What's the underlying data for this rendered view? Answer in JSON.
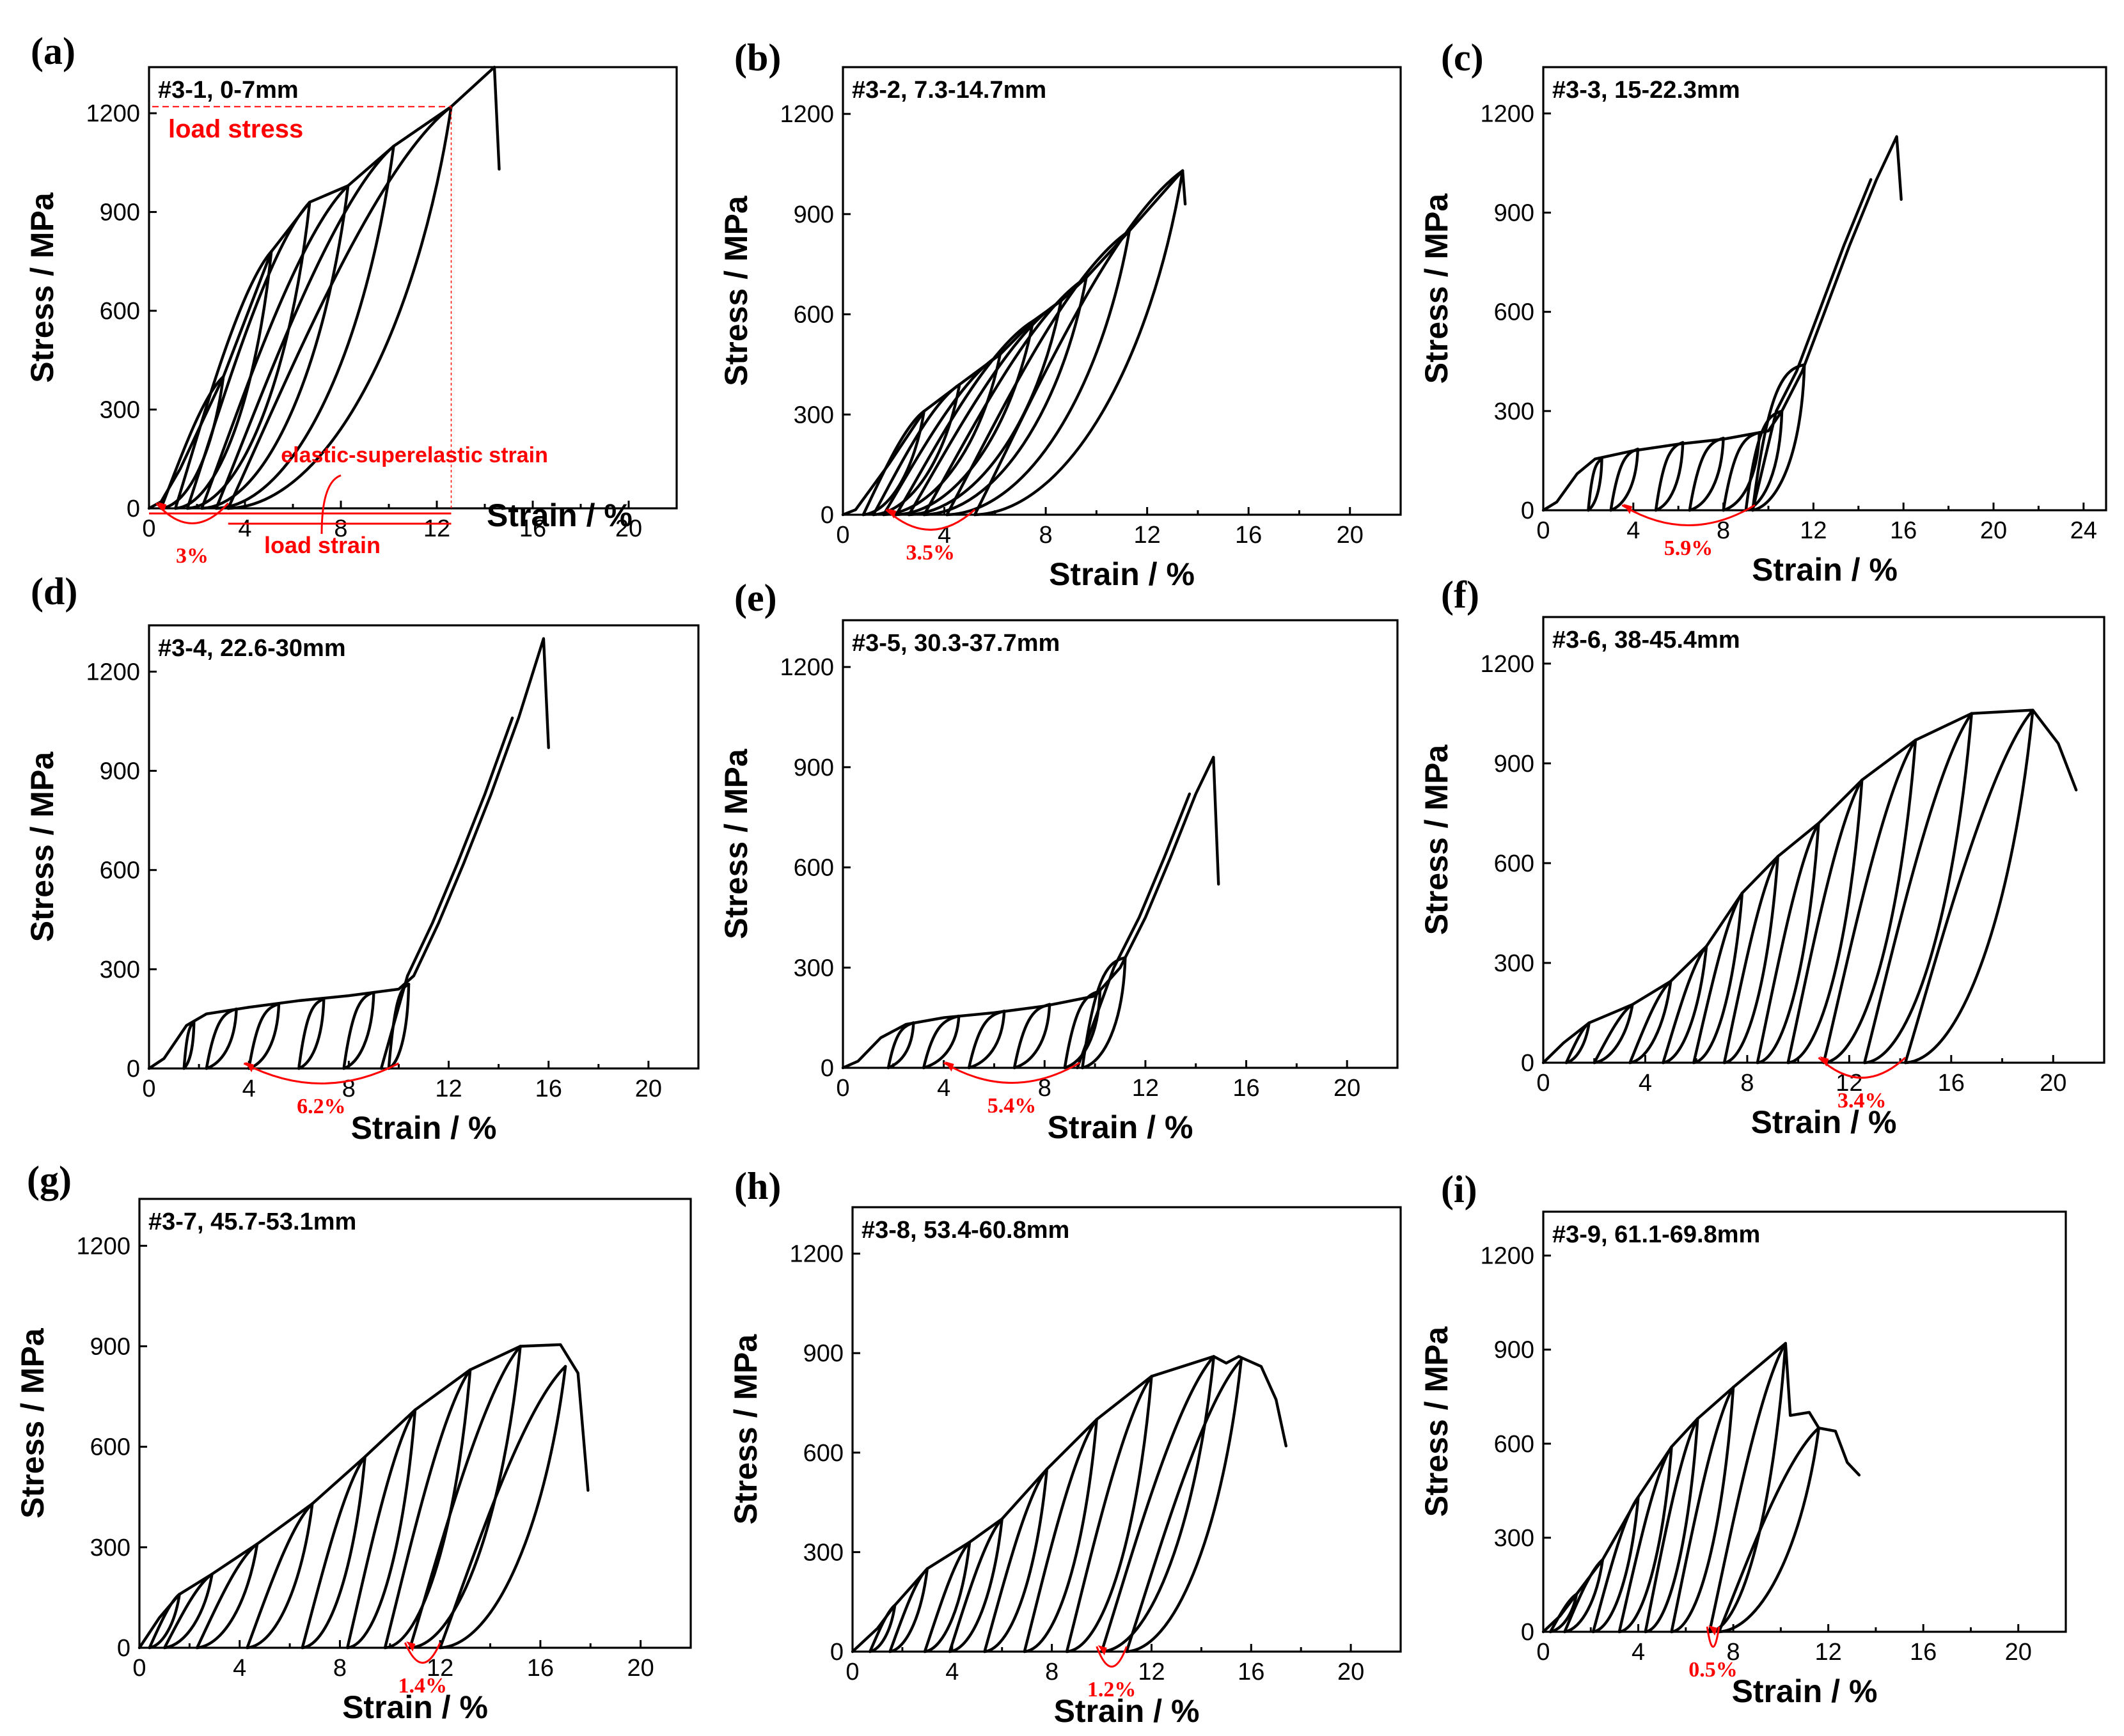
{
  "colors": {
    "curve": "#000000",
    "annotation": "#ff0000"
  },
  "chart_data": [
    {
      "id": "a",
      "label": "(a)",
      "title": "#3-1, 0-7mm",
      "type": "line",
      "xlabel": "Strain / %",
      "ylabel": "Stress / MPa",
      "xlim": [
        0,
        22
      ],
      "ylim": [
        0,
        1340
      ],
      "xticks": [
        0,
        4,
        8,
        12,
        16,
        20
      ],
      "yticks": [
        0,
        300,
        600,
        900,
        1200
      ],
      "residual_label": "3%",
      "residual_from": 0.3,
      "residual_to": 3.3,
      "peaks": [
        [
          3.1,
          400
        ],
        [
          5.1,
          780
        ],
        [
          6.7,
          930
        ],
        [
          8.3,
          980
        ],
        [
          10.2,
          1100
        ],
        [
          12.6,
          1220
        ]
      ],
      "residuals": [
        0.5,
        1.1,
        1.6,
        2.2,
        2.8,
        3.3
      ],
      "envelope": [
        [
          0,
          0
        ],
        [
          0.5,
          20
        ],
        [
          1.3,
          120
        ],
        [
          3.1,
          400
        ],
        [
          5.1,
          780
        ],
        [
          6.7,
          930
        ],
        [
          8.3,
          980
        ],
        [
          10.2,
          1100
        ],
        [
          12.6,
          1220
        ],
        [
          14.4,
          1340
        ],
        [
          14.6,
          1030
        ]
      ],
      "labels": {
        "load_stress": "load stress",
        "elastic_strain": "elastic-superelastic strain",
        "load_strain": "load strain"
      }
    },
    {
      "id": "b",
      "label": "(b)",
      "title": "#3-2, 7.3-14.7mm",
      "type": "line",
      "xlabel": "Strain / %",
      "ylabel": "Stress / MPa",
      "xlim": [
        0,
        22
      ],
      "ylim": [
        0,
        1340
      ],
      "xticks": [
        0,
        4,
        8,
        12,
        16,
        20
      ],
      "yticks": [
        0,
        300,
        600,
        900,
        1200
      ],
      "residual_label": "3.5%",
      "residual_from": 1.7,
      "residual_to": 5.2,
      "peaks": [
        [
          3.2,
          310
        ],
        [
          4.6,
          390
        ],
        [
          6.2,
          480
        ],
        [
          7.5,
          580
        ],
        [
          8.6,
          640
        ],
        [
          9.6,
          710
        ],
        [
          11.3,
          850
        ],
        [
          13.4,
          1030
        ]
      ],
      "residuals": [
        0.8,
        1.2,
        1.6,
        2.1,
        2.6,
        3.2,
        4.1,
        5.2
      ],
      "envelope": [
        [
          0,
          0
        ],
        [
          0.5,
          15
        ],
        [
          1.8,
          150
        ],
        [
          3.2,
          310
        ],
        [
          4.6,
          390
        ],
        [
          6.2,
          480
        ],
        [
          7.5,
          580
        ],
        [
          8.6,
          640
        ],
        [
          9.6,
          710
        ],
        [
          11.3,
          850
        ],
        [
          13.4,
          1030
        ],
        [
          13.5,
          930
        ]
      ]
    },
    {
      "id": "c",
      "label": "(c)",
      "title": "#3-3, 15-22.3mm",
      "type": "line",
      "xlabel": "Strain / %",
      "ylabel": "Stress / MPa",
      "xlim": [
        0,
        25
      ],
      "ylim": [
        0,
        1340
      ],
      "xticks": [
        0,
        4,
        8,
        12,
        16,
        20,
        24
      ],
      "yticks": [
        0,
        300,
        600,
        900,
        1200
      ],
      "residual_label": "5.9%",
      "residual_from": 3.5,
      "residual_to": 9.4,
      "envelope": [
        [
          0,
          0
        ],
        [
          0.6,
          25
        ],
        [
          1.5,
          110
        ],
        [
          2.3,
          155
        ],
        [
          4,
          180
        ],
        [
          6,
          200
        ],
        [
          8,
          215
        ],
        [
          10,
          240
        ],
        [
          10.6,
          300
        ],
        [
          11.5,
          420
        ],
        [
          12.5,
          600
        ],
        [
          13.6,
          800
        ],
        [
          14.8,
          1000
        ],
        [
          15.7,
          1130
        ],
        [
          15.9,
          940
        ]
      ],
      "loops": [
        [
          2.6,
          155,
          2.0
        ],
        [
          4.2,
          185,
          3.0
        ],
        [
          6.2,
          205,
          5.0
        ],
        [
          8.0,
          218,
          6.5
        ],
        [
          9.6,
          235,
          8.0
        ],
        [
          10.6,
          300,
          9.0
        ],
        [
          11.6,
          440,
          9.3
        ]
      ]
    },
    {
      "id": "d",
      "label": "(d)",
      "title": "#3-4, 22.6-30mm",
      "type": "line",
      "xlabel": "Strain / %",
      "ylabel": "Stress / MPa",
      "xlim": [
        0,
        22
      ],
      "ylim": [
        0,
        1340
      ],
      "xticks": [
        0,
        4,
        8,
        12,
        16,
        20
      ],
      "yticks": [
        0,
        300,
        600,
        900,
        1200
      ],
      "residual_label": "6.2%",
      "residual_from": 3.8,
      "residual_to": 10.0,
      "envelope": [
        [
          0,
          0
        ],
        [
          0.6,
          30
        ],
        [
          1.5,
          130
        ],
        [
          2.3,
          165
        ],
        [
          4,
          185
        ],
        [
          6,
          205
        ],
        [
          8,
          220
        ],
        [
          10,
          240
        ],
        [
          10.6,
          280
        ],
        [
          11.6,
          440
        ],
        [
          12.6,
          620
        ],
        [
          13.7,
          830
        ],
        [
          14.8,
          1060
        ],
        [
          15.8,
          1300
        ],
        [
          16,
          970
        ]
      ],
      "loops": [
        [
          1.8,
          140,
          1.4
        ],
        [
          3.5,
          180,
          2.3
        ],
        [
          5.2,
          195,
          4.0
        ],
        [
          7.0,
          210,
          6.0
        ],
        [
          9.0,
          230,
          7.8
        ],
        [
          10.4,
          255,
          9.6
        ]
      ]
    },
    {
      "id": "e",
      "label": "(e)",
      "title": "#3-5, 30.3-37.7mm",
      "type": "line",
      "xlabel": "Strain / %",
      "ylabel": "Stress / MPa",
      "xlim": [
        0,
        22
      ],
      "ylim": [
        0,
        1340
      ],
      "xticks": [
        0,
        4,
        8,
        12,
        16,
        20
      ],
      "yticks": [
        0,
        300,
        600,
        900,
        1200
      ],
      "residual_label": "5.4%",
      "residual_from": 4.0,
      "residual_to": 9.4,
      "envelope": [
        [
          0,
          0
        ],
        [
          0.6,
          20
        ],
        [
          1.5,
          90
        ],
        [
          2.5,
          130
        ],
        [
          4,
          150
        ],
        [
          6,
          165
        ],
        [
          8,
          185
        ],
        [
          10,
          215
        ],
        [
          11,
          300
        ],
        [
          12,
          450
        ],
        [
          13,
          630
        ],
        [
          14,
          820
        ],
        [
          14.7,
          930
        ],
        [
          14.9,
          550
        ]
      ],
      "loops": [
        [
          2.8,
          135,
          1.8
        ],
        [
          4.6,
          155,
          3.2
        ],
        [
          6.4,
          170,
          5.0
        ],
        [
          8.2,
          190,
          6.8
        ],
        [
          10.2,
          230,
          8.8
        ],
        [
          11.2,
          330,
          9.5
        ]
      ]
    },
    {
      "id": "f",
      "label": "(f)",
      "title": "#3-6, 38-45.4mm",
      "type": "line",
      "xlabel": "Strain / %",
      "ylabel": "Stress / MPa",
      "xlim": [
        0,
        22
      ],
      "ylim": [
        0,
        1340
      ],
      "xticks": [
        0,
        4,
        8,
        12,
        16,
        20
      ],
      "yticks": [
        0,
        300,
        600,
        900,
        1200
      ],
      "residual_label": "3.4%",
      "residual_from": 10.8,
      "residual_to": 14.2,
      "peaks": [
        [
          1.8,
          120
        ],
        [
          3.5,
          175
        ],
        [
          5.0,
          245
        ],
        [
          6.4,
          350
        ],
        [
          7.8,
          510
        ],
        [
          9.2,
          620
        ],
        [
          10.8,
          720
        ],
        [
          12.5,
          850
        ],
        [
          14.6,
          970
        ],
        [
          16.8,
          1050
        ],
        [
          19.2,
          1060
        ]
      ],
      "residuals": [
        0.9,
        2.0,
        3.4,
        4.7,
        5.9,
        7.1,
        8.4,
        9.6,
        11.0,
        12.6,
        14.2
      ],
      "envelope": [
        [
          0,
          0
        ],
        [
          0.8,
          60
        ],
        [
          1.8,
          120
        ],
        [
          3.5,
          175
        ],
        [
          5.0,
          245
        ],
        [
          6.4,
          350
        ],
        [
          7.8,
          510
        ],
        [
          9.2,
          620
        ],
        [
          10.8,
          720
        ],
        [
          12.5,
          850
        ],
        [
          14.6,
          970
        ],
        [
          16.8,
          1050
        ],
        [
          19.2,
          1060
        ],
        [
          20.2,
          960
        ],
        [
          20.9,
          820
        ]
      ]
    },
    {
      "id": "g",
      "label": "(g)",
      "title": "#3-7, 45.7-53.1mm",
      "type": "line",
      "xlabel": "Strain / %",
      "ylabel": "Stress / MPa",
      "xlim": [
        0,
        22
      ],
      "ylim": [
        0,
        1340
      ],
      "xticks": [
        0,
        4,
        8,
        12,
        16,
        20
      ],
      "yticks": [
        0,
        300,
        600,
        900,
        1200
      ],
      "residual_label": "1.4%",
      "residual_from": 10.6,
      "residual_to": 12.0,
      "peaks": [
        [
          1.6,
          160
        ],
        [
          2.9,
          220
        ],
        [
          4.7,
          310
        ],
        [
          6.9,
          430
        ],
        [
          9.0,
          570
        ],
        [
          11.0,
          710
        ],
        [
          13.2,
          830
        ],
        [
          15.2,
          900
        ],
        [
          17.0,
          840
        ]
      ],
      "residuals": [
        0.4,
        1.0,
        2.3,
        4.3,
        6.5,
        8.3,
        9.8,
        10.8,
        12.0
      ],
      "envelope": [
        [
          0,
          0
        ],
        [
          0.8,
          90
        ],
        [
          1.6,
          160
        ],
        [
          2.9,
          220
        ],
        [
          4.7,
          310
        ],
        [
          6.9,
          430
        ],
        [
          9.0,
          570
        ],
        [
          11.0,
          710
        ],
        [
          13.2,
          830
        ],
        [
          15.2,
          900
        ],
        [
          16.8,
          905
        ],
        [
          17.5,
          820
        ],
        [
          17.9,
          470
        ]
      ]
    },
    {
      "id": "h",
      "label": "(h)",
      "title": "#3-8, 53.4-60.8mm",
      "type": "line",
      "xlabel": "Strain / %",
      "ylabel": "Stress / MPa",
      "xlim": [
        0,
        22
      ],
      "ylim": [
        0,
        1340
      ],
      "xticks": [
        0,
        4,
        8,
        12,
        16,
        20
      ],
      "yticks": [
        0,
        300,
        600,
        900,
        1200
      ],
      "residual_label": "1.2%",
      "residual_from": 9.8,
      "residual_to": 11.0,
      "peaks": [
        [
          1.7,
          140
        ],
        [
          3.0,
          250
        ],
        [
          4.7,
          330
        ],
        [
          6.0,
          400
        ],
        [
          7.8,
          550
        ],
        [
          9.8,
          700
        ],
        [
          12.0,
          830
        ],
        [
          14.5,
          890
        ],
        [
          15.6,
          880
        ]
      ],
      "residuals": [
        0.7,
        1.5,
        2.9,
        3.9,
        5.3,
        6.9,
        8.6,
        10.0,
        11.0
      ],
      "envelope": [
        [
          0,
          0
        ],
        [
          1.0,
          70
        ],
        [
          1.7,
          140
        ],
        [
          3.0,
          250
        ],
        [
          4.7,
          330
        ],
        [
          6.0,
          400
        ],
        [
          7.8,
          550
        ],
        [
          9.8,
          700
        ],
        [
          12.0,
          830
        ],
        [
          14.5,
          890
        ],
        [
          15.0,
          870
        ],
        [
          15.5,
          890
        ],
        [
          16.4,
          860
        ],
        [
          17.0,
          760
        ],
        [
          17.4,
          620
        ]
      ]
    },
    {
      "id": "i",
      "label": "(i)",
      "title": "#3-9, 61.1-69.8mm",
      "type": "line",
      "xlabel": "Strain / %",
      "ylabel": "Stress / MPa",
      "xlim": [
        0,
        22
      ],
      "ylim": [
        0,
        1340
      ],
      "xticks": [
        0,
        4,
        8,
        12,
        16,
        20
      ],
      "yticks": [
        0,
        300,
        600,
        900,
        1200
      ],
      "residual_label": "0.5%",
      "residual_from": 6.9,
      "residual_to": 7.4,
      "peaks": [
        [
          1.4,
          120
        ],
        [
          2.5,
          230
        ],
        [
          4.0,
          430
        ],
        [
          5.4,
          590
        ],
        [
          6.5,
          680
        ],
        [
          8.0,
          780
        ],
        [
          10.2,
          920
        ],
        [
          11.6,
          650
        ]
      ],
      "residuals": [
        0.3,
        0.9,
        2.1,
        3.2,
        4.3,
        5.4,
        7.0,
        7.4
      ],
      "envelope": [
        [
          0,
          0
        ],
        [
          0.7,
          50
        ],
        [
          1.4,
          120
        ],
        [
          2.5,
          230
        ],
        [
          4.0,
          430
        ],
        [
          5.4,
          590
        ],
        [
          6.5,
          680
        ],
        [
          8.0,
          780
        ],
        [
          10.2,
          920
        ],
        [
          10.4,
          690
        ],
        [
          11.2,
          700
        ],
        [
          11.6,
          650
        ],
        [
          12.3,
          640
        ],
        [
          12.8,
          540
        ],
        [
          13.3,
          500
        ]
      ]
    }
  ]
}
